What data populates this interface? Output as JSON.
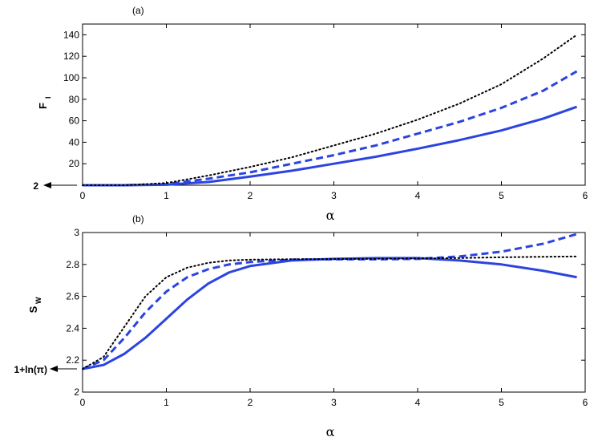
{
  "chart_data": [
    {
      "type": "line",
      "panel_label": "(a)",
      "xlabel": "α",
      "ylabel": "F",
      "ylabel_sub": "I",
      "xlim": [
        0,
        6
      ],
      "ylim": [
        0,
        150
      ],
      "xticks": [
        0,
        1,
        2,
        3,
        4,
        5,
        6
      ],
      "yticks": [
        20,
        40,
        60,
        80,
        100,
        120,
        140
      ],
      "grid": false,
      "annotation": {
        "text": "2",
        "y": 0
      },
      "series": [
        {
          "style": "solid",
          "color": "#2b44e0",
          "x": [
            0,
            0.5,
            1,
            1.5,
            2,
            2.5,
            3,
            3.5,
            4,
            4.5,
            5,
            5.5,
            5.9
          ],
          "y": [
            0,
            0,
            0.5,
            3,
            8,
            13.5,
            20,
            26.5,
            34,
            42,
            51,
            62,
            73
          ]
        },
        {
          "style": "dashed",
          "color": "#2b44e0",
          "x": [
            0,
            0.5,
            1,
            1.5,
            2,
            2.5,
            3,
            3.5,
            4,
            4.5,
            5,
            5.5,
            5.9
          ],
          "y": [
            0,
            0,
            1,
            6,
            12,
            20,
            28,
            37,
            48,
            59,
            72,
            88,
            106
          ]
        },
        {
          "style": "dotted",
          "color": "#000000",
          "x": [
            0,
            0.5,
            1,
            1.5,
            2,
            2.5,
            3,
            3.5,
            4,
            4.5,
            5,
            5.5,
            5.9
          ],
          "y": [
            0,
            0,
            2,
            9,
            17,
            26,
            37,
            48,
            61,
            76,
            94,
            118,
            140
          ]
        }
      ]
    },
    {
      "type": "line",
      "panel_label": "(b)",
      "xlabel": "α",
      "ylabel": "S",
      "ylabel_sub": "W",
      "xlim": [
        0,
        6
      ],
      "ylim": [
        2,
        3
      ],
      "xticks": [
        0,
        1,
        2,
        3,
        4,
        5,
        6
      ],
      "yticks": [
        2,
        2.2,
        2.4,
        2.6,
        2.8,
        3
      ],
      "grid": false,
      "annotation": {
        "text": "1+ln(π)",
        "y": 2.145
      },
      "series": [
        {
          "style": "solid",
          "color": "#2b44e0",
          "x": [
            0,
            0.25,
            0.5,
            0.75,
            1,
            1.25,
            1.5,
            1.75,
            2,
            2.5,
            3,
            3.5,
            4,
            4.5,
            5,
            5.5,
            5.9
          ],
          "y": [
            2.145,
            2.17,
            2.24,
            2.34,
            2.46,
            2.58,
            2.68,
            2.75,
            2.79,
            2.825,
            2.835,
            2.84,
            2.84,
            2.825,
            2.8,
            2.76,
            2.72
          ]
        },
        {
          "style": "dashed",
          "color": "#2b44e0",
          "x": [
            0,
            0.25,
            0.5,
            0.75,
            1,
            1.25,
            1.5,
            1.75,
            2,
            2.5,
            3,
            3.5,
            4,
            4.5,
            5,
            5.5,
            5.9
          ],
          "y": [
            2.145,
            2.2,
            2.34,
            2.5,
            2.63,
            2.72,
            2.77,
            2.8,
            2.815,
            2.83,
            2.832,
            2.832,
            2.835,
            2.85,
            2.88,
            2.93,
            2.99
          ]
        },
        {
          "style": "dotted",
          "color": "#000000",
          "x": [
            0,
            0.25,
            0.5,
            0.75,
            1,
            1.25,
            1.5,
            1.75,
            2,
            2.5,
            3,
            3.5,
            4,
            4.5,
            5,
            5.5,
            5.9
          ],
          "y": [
            2.145,
            2.22,
            2.41,
            2.6,
            2.72,
            2.78,
            2.81,
            2.825,
            2.83,
            2.833,
            2.834,
            2.835,
            2.838,
            2.84,
            2.845,
            2.848,
            2.85
          ]
        }
      ]
    }
  ]
}
